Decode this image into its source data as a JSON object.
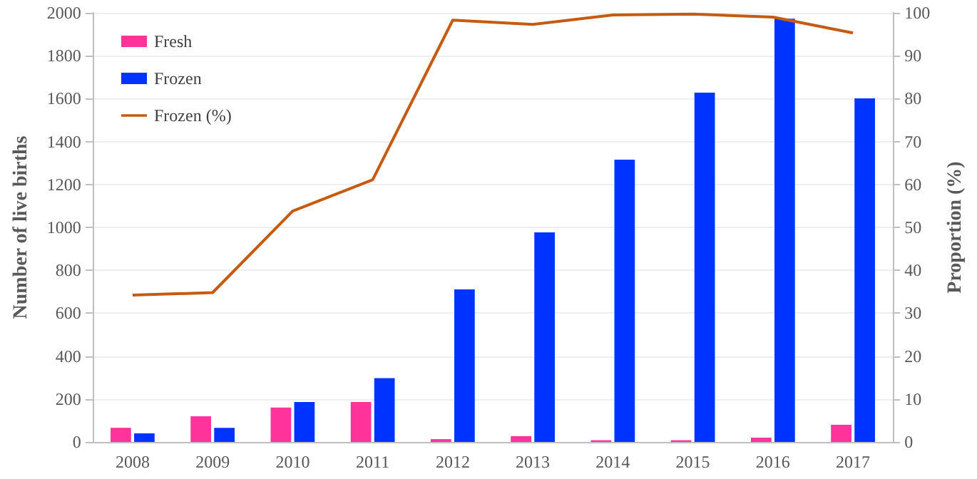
{
  "chart_data": {
    "type": "bar",
    "ylabel": "Number of live births",
    "y2label": "Proportion (%)",
    "categories": [
      "2008",
      "2009",
      "2010",
      "2011",
      "2012",
      "2013",
      "2014",
      "2015",
      "2016",
      "2017"
    ],
    "series": [
      {
        "name": "Fresh",
        "color": "#ff3399",
        "values": [
          66,
          120,
          160,
          186,
          13,
          27,
          8,
          8,
          20,
          80
        ]
      },
      {
        "name": "Frozen",
        "color": "#0033ff",
        "values": [
          40,
          66,
          186,
          297,
          711,
          977,
          1316,
          1628,
          1973,
          1601
        ]
      },
      {
        "name": "Frozen (%)",
        "type": "line",
        "axis": "y2",
        "color": "#c55a11",
        "values": [
          34.2,
          34.8,
          53.8,
          61.1,
          98.3,
          97.3,
          99.5,
          99.7,
          99.0,
          95.3
        ]
      }
    ],
    "ylim": [
      0,
      2000
    ],
    "yticks": [
      0,
      200,
      400,
      600,
      800,
      1000,
      1200,
      1400,
      1600,
      1800,
      2000
    ],
    "y2lim": [
      0,
      100
    ],
    "y2ticks": [
      0,
      10,
      20,
      30,
      40,
      50,
      60,
      70,
      80,
      90,
      100
    ],
    "grid": "y",
    "legend": "top left",
    "marker": "none"
  }
}
